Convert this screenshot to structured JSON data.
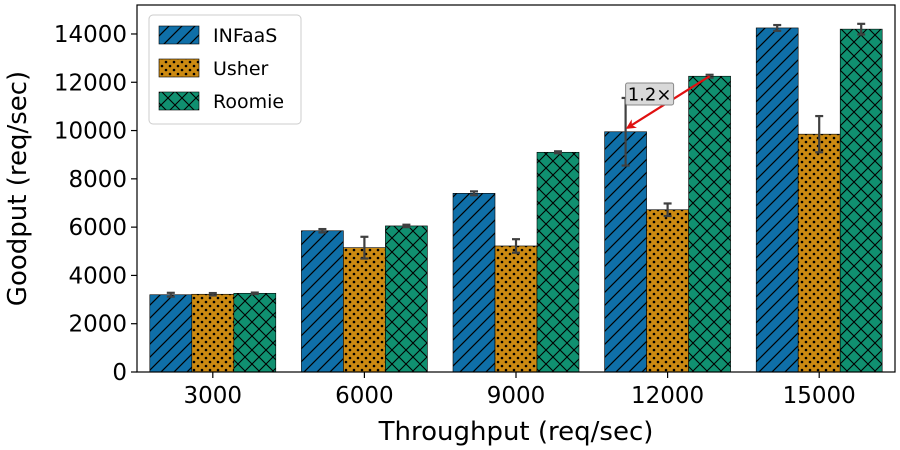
{
  "chart_data": {
    "type": "bar",
    "xlabel": "Throughput (req/sec)",
    "ylabel": "Goodput (req/sec)",
    "ylim": [
      0,
      15200
    ],
    "yticks": [
      0,
      2000,
      4000,
      6000,
      8000,
      10000,
      12000,
      14000
    ],
    "categories": [
      "3000",
      "6000",
      "9000",
      "12000",
      "15000"
    ],
    "grid": false,
    "legend_position": "top-left",
    "series": [
      {
        "name": "INFaaS",
        "color": "#0f6fa8",
        "pattern": "diagonal-hatch",
        "values": [
          3200,
          5850,
          7400,
          9950,
          14250
        ],
        "errors": [
          80,
          70,
          80,
          1400,
          120
        ]
      },
      {
        "name": "Usher",
        "color": "#cc8a12",
        "pattern": "dots",
        "values": [
          3220,
          5150,
          5220,
          6720,
          9850
        ],
        "errors": [
          50,
          450,
          280,
          260,
          750
        ]
      },
      {
        "name": "Roomie",
        "color": "#109070",
        "pattern": "cross-hatch",
        "values": [
          3260,
          6050,
          9100,
          12250,
          14200
        ],
        "errors": [
          30,
          50,
          40,
          60,
          220
        ]
      }
    ],
    "annotations": [
      {
        "text": "1.2×",
        "category": "12000",
        "from_series": "Roomie",
        "to_series": "INFaaS",
        "arrow_color": "#e01010"
      }
    ]
  }
}
